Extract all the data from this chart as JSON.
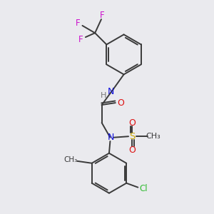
{
  "bg_color": "#eaeaee",
  "bond_color": "#3a3a3a",
  "colors": {
    "N": "#1010dd",
    "O": "#dd1010",
    "F": "#cc10cc",
    "Cl": "#30bb30",
    "S": "#ccaa00",
    "C": "#3a3a3a",
    "H": "#777777"
  },
  "figsize": [
    3.0,
    3.0
  ],
  "dpi": 100
}
